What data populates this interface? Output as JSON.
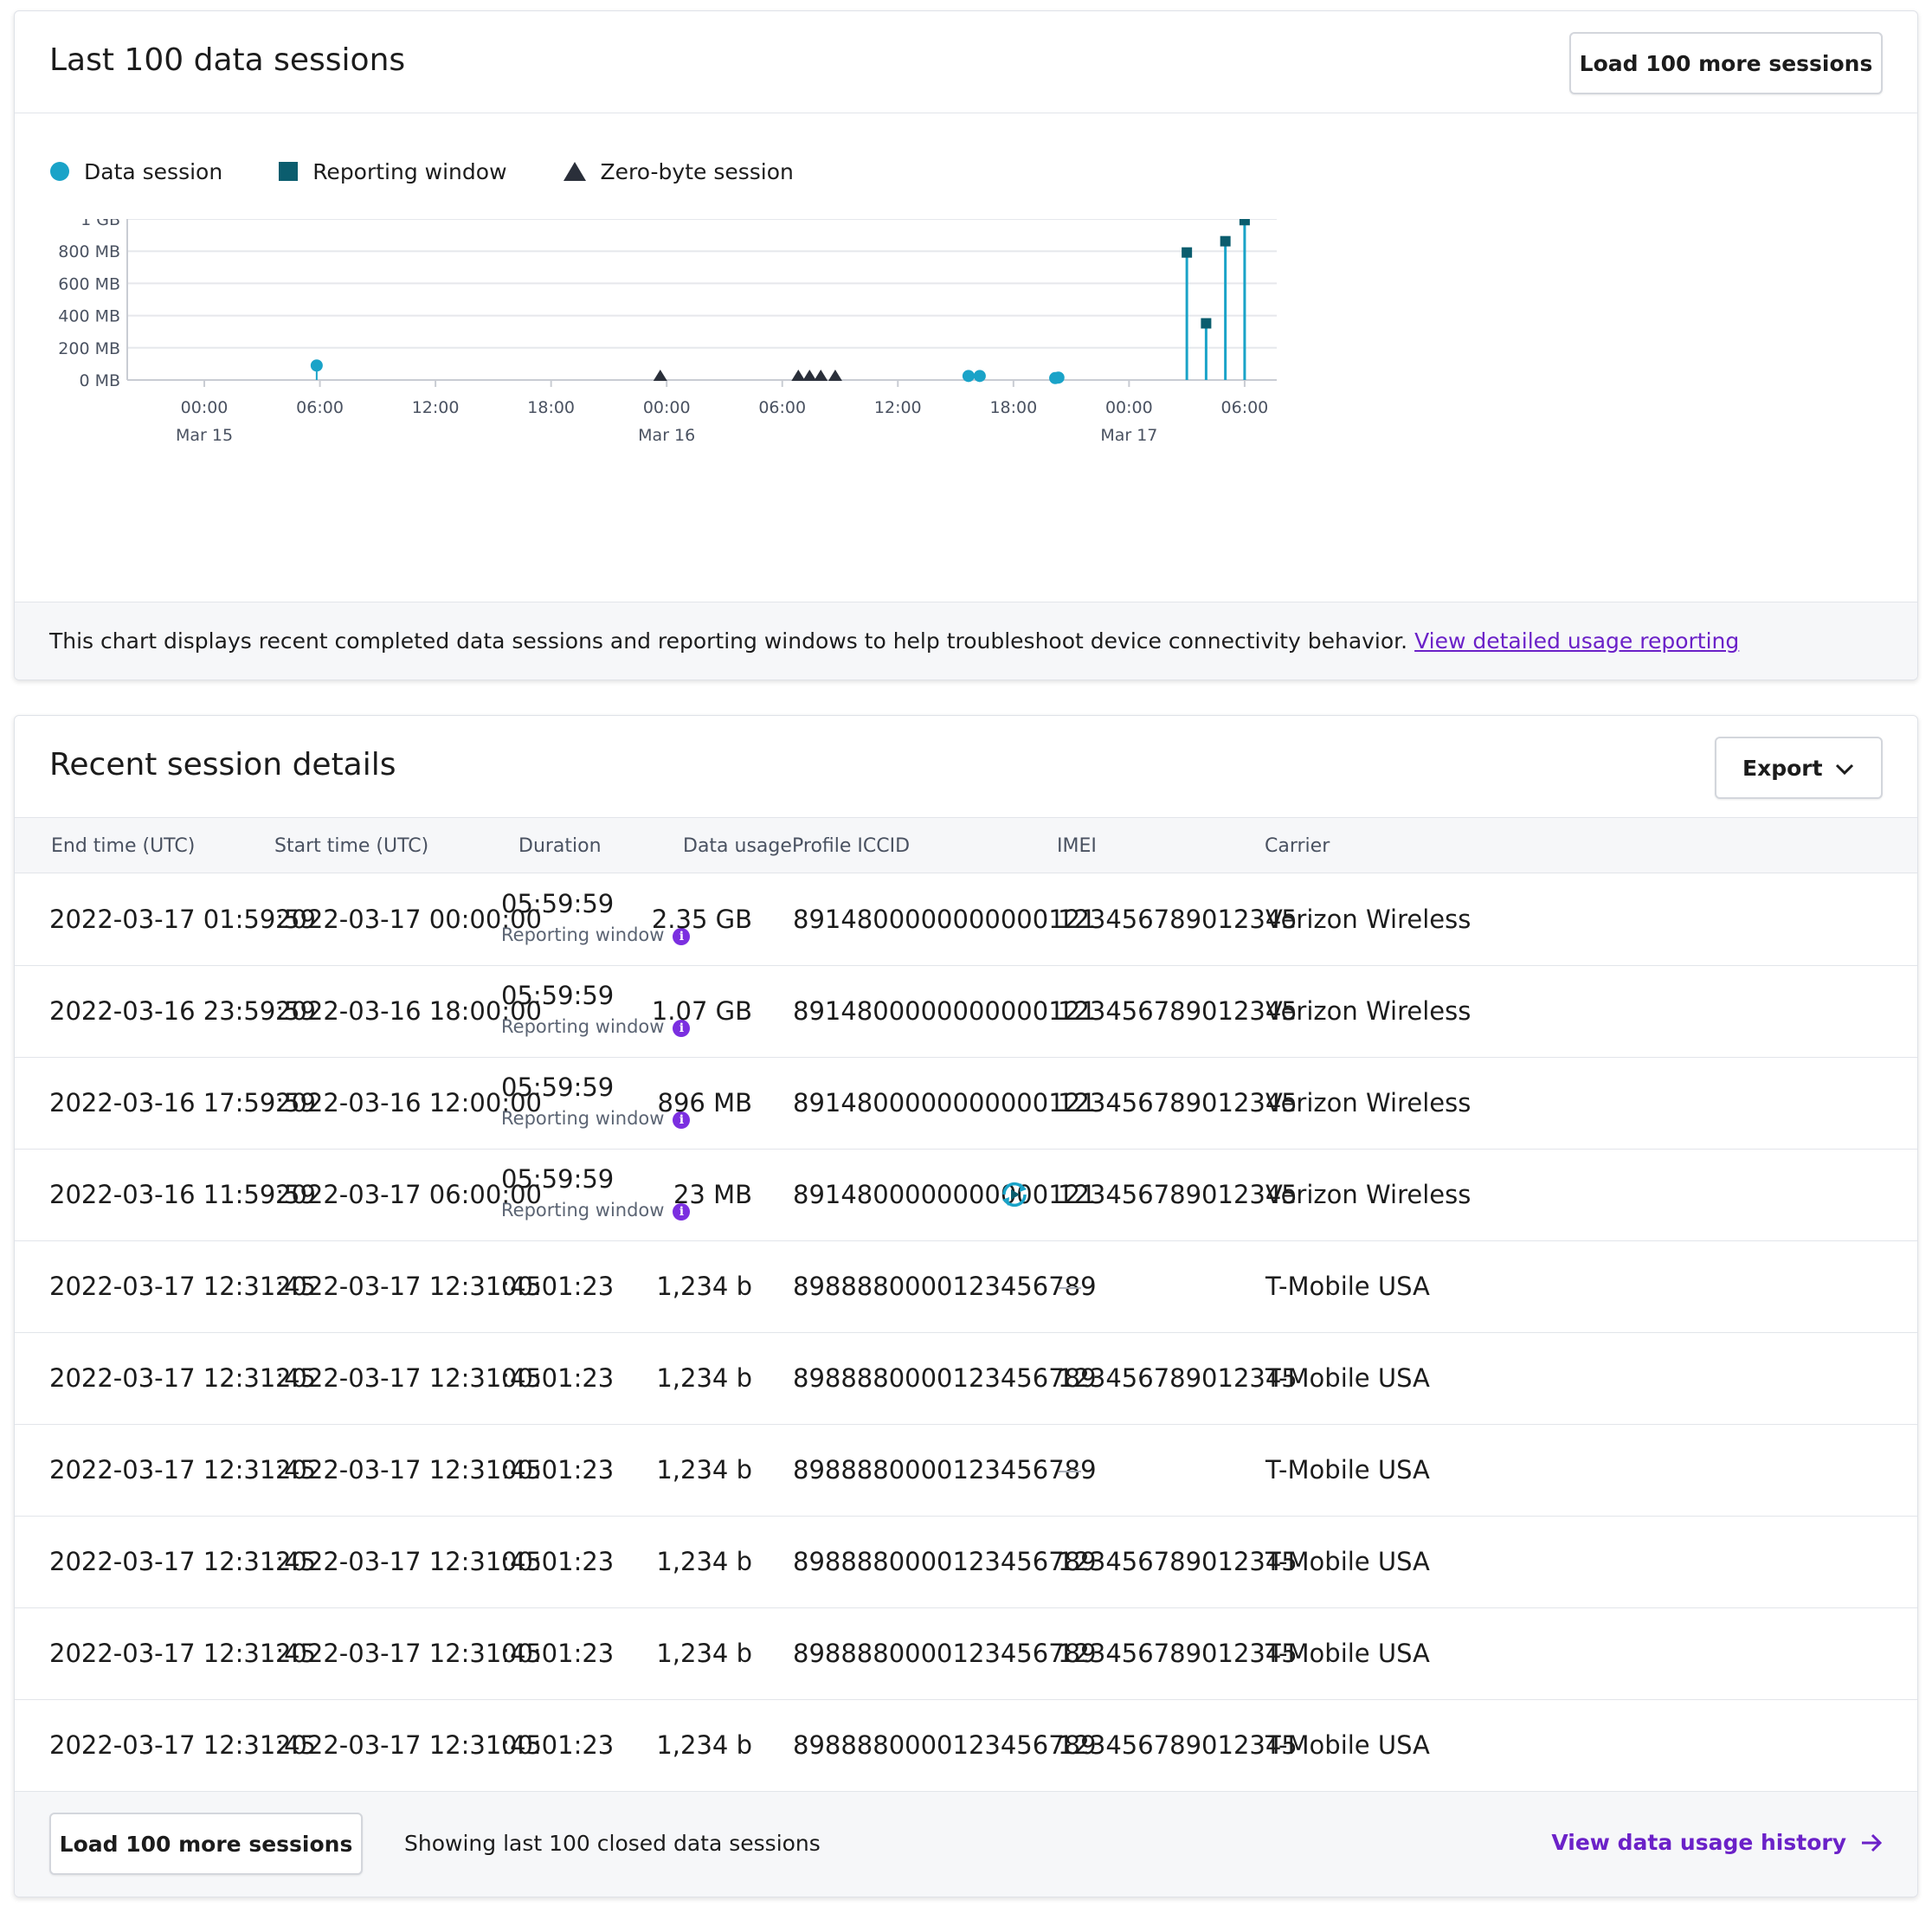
{
  "chart_card": {
    "title": "Last 100 data sessions",
    "load_button": "Load 100 more sessions",
    "legend": [
      {
        "label": "Data session",
        "color": "#1aa3c8",
        "icon": "circle-icon"
      },
      {
        "label": "Reporting window",
        "color": "#0b5d6e",
        "icon": "square-icon"
      },
      {
        "label": "Zero-byte session",
        "color": "#2a2f3a",
        "icon": "triangle-icon"
      }
    ],
    "footer_text": "This chart displays recent completed data sessions and reporting windows to help troubleshoot device connectivity behavior.",
    "footer_link": "View detailed usage reporting"
  },
  "chart_data": {
    "type": "scatter",
    "title": "",
    "xlabel": "",
    "ylabel": "",
    "y_ticks": [
      "0 MB",
      "200 MB",
      "400 MB",
      "600 MB",
      "800 MB",
      "1 GB"
    ],
    "ylim": [
      0,
      1000
    ],
    "x_ticks": [
      {
        "time": "00:00",
        "date": "Mar 15"
      },
      {
        "time": "06:00",
        "date": ""
      },
      {
        "time": "12:00",
        "date": ""
      },
      {
        "time": "18:00",
        "date": ""
      },
      {
        "time": "00:00",
        "date": "Mar 16"
      },
      {
        "time": "06:00",
        "date": ""
      },
      {
        "time": "12:00",
        "date": ""
      },
      {
        "time": "18:00",
        "date": ""
      },
      {
        "time": "00:00",
        "date": "Mar 17"
      },
      {
        "time": "06:00",
        "date": ""
      }
    ],
    "xlim": [
      "2022-03-14T20:00",
      "2022-03-17T07:40"
    ],
    "grid": true,
    "series": [
      {
        "name": "Data session",
        "points": [
          {
            "x": "2022-03-15T05:50",
            "y": 90
          },
          {
            "x": "2022-03-16T15:40",
            "y": 25
          },
          {
            "x": "2022-03-16T16:15",
            "y": 25
          },
          {
            "x": "2022-03-16T20:10",
            "y": 12
          },
          {
            "x": "2022-03-16T20:20",
            "y": 15
          }
        ]
      },
      {
        "name": "Reporting window",
        "points": [
          {
            "x": "2022-03-17T03:00",
            "y": 792
          },
          {
            "x": "2022-03-17T04:00",
            "y": 352
          },
          {
            "x": "2022-03-17T05:00",
            "y": 862
          },
          {
            "x": "2022-03-17T06:00",
            "y": 993
          }
        ]
      },
      {
        "name": "Zero-byte session",
        "points": [
          {
            "x": "2022-03-15T23:40",
            "y": 0
          },
          {
            "x": "2022-03-16T06:50",
            "y": 0
          },
          {
            "x": "2022-03-16T07:25",
            "y": 0
          },
          {
            "x": "2022-03-16T08:00",
            "y": 0
          },
          {
            "x": "2022-03-16T08:45",
            "y": 0
          }
        ]
      }
    ]
  },
  "table_card": {
    "title": "Recent session details",
    "export_button": "Export",
    "columns": [
      "End time (UTC)",
      "Start time (UTC)",
      "Duration",
      "Data usage",
      "Profile ICCID",
      "IMEI",
      "Carrier"
    ],
    "rows": [
      {
        "end": "2022-03-17 01:59:59",
        "start": "2022-03-17 00:00:00",
        "duration": "05:59:59",
        "duration_sub": "Reporting window",
        "usage": "2.35 GB",
        "iccid": "8914800000000000121",
        "iccid_icon": false,
        "imei": "123456789012345",
        "carrier": "Verizon Wireless"
      },
      {
        "end": "2022-03-16 23:59:59",
        "start": "2022-03-16 18:00:00",
        "duration": "05:59:59",
        "duration_sub": "Reporting window",
        "usage": "1.07 GB",
        "iccid": "8914800000000000121",
        "iccid_icon": false,
        "imei": "123456789012345",
        "carrier": "Verizon Wireless"
      },
      {
        "end": "2022-03-16 17:59:59",
        "start": "2022-03-16 12:00:00",
        "duration": "05:59:59",
        "duration_sub": "Reporting window",
        "usage": "896 MB",
        "iccid": "8914800000000000121",
        "iccid_icon": false,
        "imei": "123456789012345",
        "carrier": "Verizon Wireless"
      },
      {
        "end": "2022-03-16 11:59:59",
        "start": "2022-03-17 06:00:00",
        "duration": "05:59:59",
        "duration_sub": "Reporting window",
        "usage": "23 MB",
        "iccid": "8914800000000000121",
        "iccid_icon": true,
        "imei": "123456789012345",
        "carrier": "Verizon Wireless"
      },
      {
        "end": "2022-03-17 12:31:45",
        "start": "2022-03-17 12:31:45",
        "duration": "00:01:23",
        "duration_sub": "",
        "usage": "1,234 b",
        "iccid": "8988880000123456789",
        "iccid_icon": false,
        "imei": "",
        "carrier": "T-Mobile USA"
      },
      {
        "end": "2022-03-17 12:31:45",
        "start": "2022-03-17 12:31:45",
        "duration": "00:01:23",
        "duration_sub": "",
        "usage": "1,234 b",
        "iccid": "8988880000123456789",
        "iccid_icon": false,
        "imei": "123456789012345",
        "carrier": "T-Mobile USA"
      },
      {
        "end": "2022-03-17 12:31:45",
        "start": "2022-03-17 12:31:45",
        "duration": "00:01:23",
        "duration_sub": "",
        "usage": "1,234 b",
        "iccid": "8988880000123456789",
        "iccid_icon": false,
        "imei": "",
        "carrier": "T-Mobile USA"
      },
      {
        "end": "2022-03-17 12:31:45",
        "start": "2022-03-17 12:31:45",
        "duration": "00:01:23",
        "duration_sub": "",
        "usage": "1,234 b",
        "iccid": "8988880000123456789",
        "iccid_icon": false,
        "imei": "123456789012345",
        "carrier": "T-Mobile USA"
      },
      {
        "end": "2022-03-17 12:31:45",
        "start": "2022-03-17 12:31:45",
        "duration": "00:01:23",
        "duration_sub": "",
        "usage": "1,234 b",
        "iccid": "8988880000123456789",
        "iccid_icon": false,
        "imei": "123456789012345",
        "carrier": "T-Mobile USA"
      },
      {
        "end": "2022-03-17 12:31:45",
        "start": "2022-03-17 12:31:45",
        "duration": "00:01:23",
        "duration_sub": "",
        "usage": "1,234 b",
        "iccid": "8988880000123456789",
        "iccid_icon": false,
        "imei": "123456789012345",
        "carrier": "T-Mobile USA"
      }
    ],
    "footer": {
      "load_button": "Load 100 more sessions",
      "status_text": "Showing last 100 closed data sessions",
      "history_link": "View data usage history"
    }
  }
}
